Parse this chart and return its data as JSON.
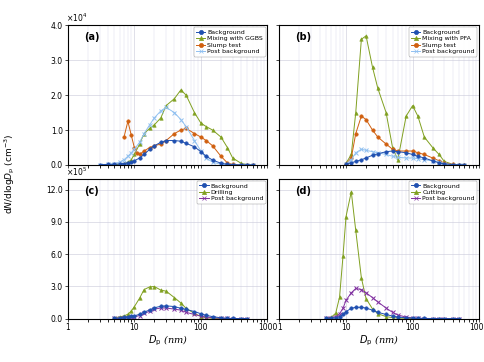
{
  "xlabel": "$D_{\\mathrm{p}}$ (nm)",
  "ylabel": "dN/dlog$D$p (cm$^{-3}$)",
  "xlim": [
    1,
    1000
  ],
  "ylim_ab": [
    0,
    4.0
  ],
  "ylim_cd": [
    0,
    13.0
  ],
  "scale_ab": 10000,
  "scale_cd": 100000,
  "yticks_ab": [
    0.0,
    1.0,
    2.0,
    3.0,
    4.0
  ],
  "yticks_cd": [
    0.0,
    3.0,
    6.0,
    9.0,
    12.0
  ],
  "colors": {
    "background": "#2050b0",
    "mixing": "#80a020",
    "slump": "#d06010",
    "post_bg_ab": "#90c0f0",
    "post_bg_cd": "#8030a0",
    "drilling": "#80a020",
    "cutting": "#80a020"
  },
  "panel_a": {
    "background_x": [
      3,
      4,
      5,
      6,
      7,
      8,
      9,
      10,
      12,
      14,
      17,
      20,
      25,
      30,
      40,
      50,
      60,
      80,
      100,
      120,
      150,
      200,
      250,
      300,
      400,
      500,
      600
    ],
    "background_y": [
      100,
      150,
      200,
      300,
      400,
      600,
      800,
      1200,
      2000,
      3000,
      4500,
      5500,
      6500,
      7000,
      7000,
      6800,
      6200,
      5200,
      3800,
      2500,
      1400,
      500,
      200,
      80,
      20,
      5,
      1
    ],
    "mixing_x": [
      4,
      5,
      6,
      7,
      8,
      9,
      10,
      12,
      14,
      17,
      20,
      25,
      30,
      40,
      50,
      60,
      80,
      100,
      120,
      150,
      200,
      250,
      300,
      400,
      500,
      600
    ],
    "mixing_y": [
      50,
      100,
      200,
      400,
      800,
      1500,
      3000,
      6000,
      9000,
      10500,
      11500,
      13500,
      17000,
      19000,
      21500,
      20000,
      15000,
      12000,
      11000,
      10000,
      8000,
      5000,
      2000,
      500,
      50,
      5
    ],
    "slump_x": [
      7,
      8,
      9,
      10,
      11,
      12,
      14,
      17,
      20,
      25,
      30,
      40,
      50,
      60,
      80,
      100,
      120,
      150,
      200,
      250,
      300,
      400,
      500,
      600
    ],
    "slump_y": [
      8000,
      12500,
      8500,
      5000,
      3500,
      3000,
      4000,
      5000,
      5500,
      6000,
      7000,
      9000,
      10000,
      10500,
      9000,
      8000,
      7000,
      5500,
      2500,
      600,
      150,
      15,
      2,
      0
    ],
    "post_bg_x": [
      3,
      4,
      5,
      6,
      7,
      8,
      9,
      10,
      12,
      14,
      17,
      20,
      25,
      30,
      40,
      50,
      60,
      80,
      100,
      120,
      150,
      200,
      250,
      300,
      400,
      500,
      600
    ],
    "post_bg_y": [
      100,
      200,
      400,
      800,
      1500,
      2500,
      3500,
      4500,
      6500,
      9000,
      11500,
      13500,
      15500,
      16500,
      15000,
      13000,
      11000,
      7000,
      4000,
      2000,
      800,
      200,
      50,
      10,
      2,
      0,
      0
    ]
  },
  "panel_b": {
    "background_x": [
      10,
      12,
      14,
      17,
      20,
      25,
      30,
      40,
      50,
      60,
      80,
      100,
      120,
      150,
      200,
      250,
      300,
      400,
      500,
      600
    ],
    "background_y": [
      300,
      600,
      1000,
      1500,
      2000,
      2800,
      3200,
      3800,
      4000,
      3800,
      3500,
      3000,
      2500,
      2000,
      1200,
      600,
      300,
      100,
      20,
      2
    ],
    "mixing_x": [
      10,
      12,
      14,
      17,
      20,
      25,
      30,
      40,
      50,
      60,
      80,
      100,
      120,
      150,
      200,
      250,
      300,
      400,
      500,
      600
    ],
    "mixing_y": [
      500,
      3000,
      15000,
      36000,
      37000,
      28000,
      22000,
      15000,
      5000,
      1500,
      14000,
      17000,
      14000,
      8000,
      5000,
      3000,
      1000,
      200,
      20,
      2
    ],
    "slump_x": [
      10,
      12,
      14,
      17,
      20,
      25,
      30,
      40,
      50,
      60,
      80,
      100,
      120,
      150,
      200,
      250,
      300,
      400,
      500,
      600
    ],
    "slump_y": [
      300,
      2000,
      9000,
      14000,
      13000,
      10000,
      8000,
      6000,
      4500,
      4000,
      4000,
      4000,
      3500,
      3000,
      2000,
      1200,
      600,
      200,
      30,
      2
    ],
    "post_bg_x": [
      10,
      12,
      14,
      17,
      20,
      25,
      30,
      40,
      50,
      60,
      80,
      100,
      120,
      150,
      200,
      250,
      300,
      400,
      500,
      600
    ],
    "post_bg_y": [
      300,
      1500,
      3500,
      4500,
      4200,
      3800,
      3500,
      3000,
      2500,
      2200,
      2000,
      2000,
      1800,
      1500,
      1200,
      800,
      400,
      100,
      10,
      1
    ]
  },
  "panel_c": {
    "background_x": [
      5,
      6,
      7,
      8,
      9,
      10,
      12,
      14,
      17,
      20,
      25,
      30,
      40,
      50,
      60,
      80,
      100,
      120,
      150,
      200,
      250,
      300,
      400,
      500
    ],
    "background_y": [
      3000,
      6000,
      10000,
      15000,
      20000,
      25000,
      40000,
      60000,
      80000,
      100000,
      115000,
      118000,
      112000,
      95000,
      85000,
      65000,
      45000,
      30000,
      18000,
      7000,
      2500,
      800,
      150,
      40
    ],
    "drilling_x": [
      5,
      6,
      7,
      8,
      9,
      10,
      12,
      14,
      17,
      20,
      25,
      30,
      40,
      50,
      60,
      80,
      100,
      120,
      150,
      200,
      250,
      300,
      400,
      500
    ],
    "drilling_y": [
      8000,
      15000,
      25000,
      40000,
      70000,
      110000,
      190000,
      270000,
      295000,
      298000,
      265000,
      255000,
      195000,
      145000,
      95000,
      48000,
      18000,
      7000,
      2500,
      900,
      250,
      80,
      15,
      3
    ],
    "post_bg_x": [
      5,
      6,
      7,
      8,
      9,
      10,
      12,
      14,
      17,
      20,
      25,
      30,
      40,
      50,
      60,
      80,
      100,
      120,
      150,
      200,
      250,
      300,
      400,
      500
    ],
    "post_bg_y": [
      800,
      1500,
      3000,
      6000,
      10000,
      15000,
      28000,
      48000,
      68000,
      88000,
      98000,
      98000,
      88000,
      78000,
      58000,
      38000,
      23000,
      14000,
      7500,
      2800,
      900,
      280,
      45,
      8
    ]
  },
  "panel_d": {
    "background_x": [
      5,
      6,
      7,
      8,
      9,
      10,
      12,
      14,
      17,
      20,
      25,
      30,
      40,
      50,
      60,
      80,
      100,
      120,
      150,
      200,
      250,
      300,
      400,
      500
    ],
    "background_y": [
      1500,
      4000,
      8000,
      18000,
      38000,
      65000,
      95000,
      105000,
      105000,
      98000,
      78000,
      58000,
      38000,
      23000,
      14000,
      7500,
      4800,
      2800,
      1400,
      500,
      180,
      45,
      8,
      1
    ],
    "cutting_x": [
      5,
      6,
      7,
      8,
      9,
      10,
      12,
      14,
      17,
      20,
      25,
      30,
      40,
      50,
      60,
      80,
      100,
      120,
      150,
      200,
      250,
      300,
      400,
      500
    ],
    "cutting_y": [
      3000,
      12000,
      50000,
      200000,
      580000,
      950000,
      1180000,
      820000,
      380000,
      185000,
      90000,
      45000,
      18000,
      8500,
      4500,
      1800,
      450,
      90,
      25,
      8,
      2,
      0,
      0,
      0
    ],
    "post_bg_x": [
      5,
      6,
      7,
      8,
      9,
      10,
      12,
      14,
      17,
      20,
      25,
      30,
      40,
      50,
      60,
      80,
      100,
      120,
      150,
      200,
      250,
      300,
      400,
      500
    ],
    "post_bg_y": [
      2500,
      7000,
      18000,
      45000,
      95000,
      170000,
      240000,
      280000,
      270000,
      240000,
      195000,
      155000,
      98000,
      58000,
      33000,
      14000,
      4800,
      1900,
      480,
      95,
      18,
      4,
      0,
      0
    ]
  }
}
